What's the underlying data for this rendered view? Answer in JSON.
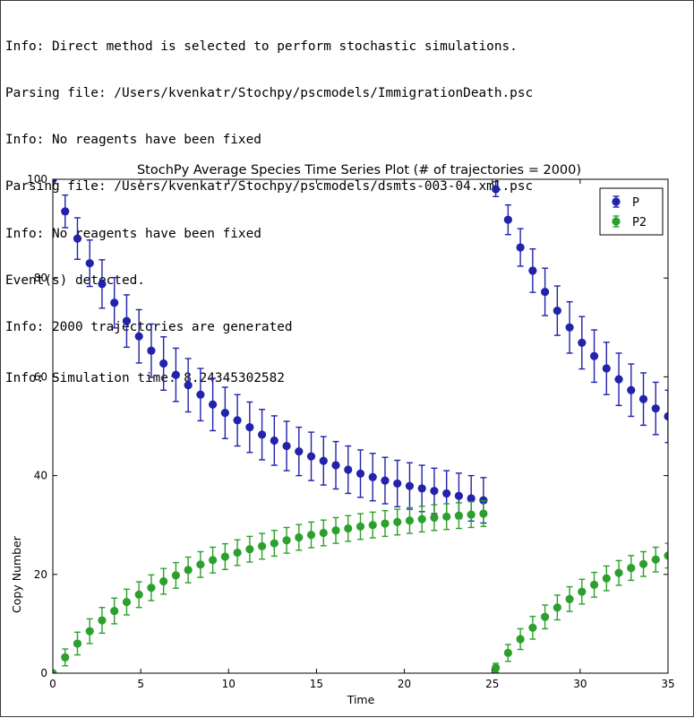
{
  "console": {
    "lines": [
      "Info: Direct method is selected to perform stochastic simulations.",
      "Parsing file: /Users/kvenkatr/Stochpy/pscmodels/ImmigrationDeath.psc",
      "Info: No reagents have been fixed",
      "Parsing file: /Users/kvenkatr/Stochpy/pscmodels/dsmts-003-04.xml.psc",
      "Info: No reagents have been fixed",
      "Event(s) detected.",
      "Info: 2000 trajectories are generated",
      "Info: Simulation time: 8.24345302582"
    ]
  },
  "colors": {
    "P": "#2222aa",
    "P2": "#2ca02c"
  },
  "chart_data": {
    "type": "scatter",
    "title": "StochPy Average Species Time Series Plot (# of trajectories = 2000)",
    "xlabel": "Time",
    "ylabel": "Copy Number",
    "xlim": [
      0,
      35
    ],
    "ylim": [
      0,
      100
    ],
    "xticks": [
      "0",
      "5",
      "10",
      "15",
      "20",
      "25",
      "30",
      "35"
    ],
    "yticks": [
      "0",
      "20",
      "40",
      "60",
      "80",
      "100"
    ],
    "grid": false,
    "legend": "top-right",
    "error_bars": true,
    "series": [
      {
        "name": "P",
        "x": [
          0,
          0.7,
          1.4,
          2.1,
          2.8,
          3.5,
          4.2,
          4.9,
          5.6,
          6.3,
          7.0,
          7.7,
          8.4,
          9.1,
          9.8,
          10.5,
          11.2,
          11.9,
          12.6,
          13.3,
          14.0,
          14.7,
          15.4,
          16.1,
          16.8,
          17.5,
          18.2,
          18.9,
          19.6,
          20.3,
          21.0,
          21.7,
          22.4,
          23.1,
          23.8,
          24.5,
          25.2,
          25.9,
          26.6,
          27.3,
          28.0,
          28.7,
          29.4,
          30.1,
          30.8,
          31.5,
          32.2,
          32.9,
          33.6,
          34.3,
          35.0
        ],
        "y": [
          100,
          93.5,
          88,
          83,
          78.8,
          75,
          71.3,
          68.2,
          65.3,
          62.7,
          60.4,
          58.3,
          56.4,
          54.4,
          52.7,
          51.2,
          49.8,
          48.3,
          47.1,
          46,
          44.9,
          43.9,
          43,
          42.1,
          41.2,
          40.4,
          39.7,
          39,
          38.4,
          37.9,
          37.4,
          36.9,
          36.4,
          35.9,
          35.4,
          35,
          98,
          91.8,
          86.2,
          81.5,
          77.2,
          73.4,
          70,
          66.9,
          64.2,
          61.7,
          59.5,
          57.3,
          55.5,
          53.6,
          52
        ],
        "err": [
          0,
          3.3,
          4.2,
          4.7,
          4.9,
          5.1,
          5.3,
          5.4,
          5.4,
          5.4,
          5.4,
          5.4,
          5.3,
          5.3,
          5.2,
          5.2,
          5.1,
          5.1,
          5.0,
          5.0,
          4.9,
          4.9,
          4.9,
          4.8,
          4.8,
          4.8,
          4.8,
          4.7,
          4.7,
          4.7,
          4.7,
          4.6,
          4.6,
          4.6,
          4.6,
          4.6,
          1.5,
          3.0,
          3.8,
          4.4,
          4.8,
          5.0,
          5.2,
          5.3,
          5.3,
          5.3,
          5.3,
          5.3,
          5.3,
          5.3,
          5.3
        ]
      },
      {
        "name": "P2",
        "x": [
          0,
          0.7,
          1.4,
          2.1,
          2.8,
          3.5,
          4.2,
          4.9,
          5.6,
          6.3,
          7.0,
          7.7,
          8.4,
          9.1,
          9.8,
          10.5,
          11.2,
          11.9,
          12.6,
          13.3,
          14.0,
          14.7,
          15.4,
          16.1,
          16.8,
          17.5,
          18.2,
          18.9,
          19.6,
          20.3,
          21.0,
          21.7,
          22.4,
          23.1,
          23.8,
          24.5,
          25.2,
          25.9,
          26.6,
          27.3,
          28.0,
          28.7,
          29.4,
          30.1,
          30.8,
          31.5,
          32.2,
          32.9,
          33.6,
          34.3,
          35.0
        ],
        "y": [
          0,
          3.2,
          6,
          8.5,
          10.7,
          12.6,
          14.4,
          15.9,
          17.3,
          18.6,
          19.8,
          20.9,
          22,
          22.9,
          23.6,
          24.4,
          25.1,
          25.7,
          26.3,
          26.9,
          27.5,
          28,
          28.4,
          28.9,
          29.3,
          29.7,
          30,
          30.3,
          30.6,
          30.9,
          31.2,
          31.5,
          31.7,
          31.9,
          32.1,
          32.3,
          1.1,
          4.1,
          6.9,
          9.2,
          11.4,
          13.3,
          15,
          16.5,
          17.9,
          19.2,
          20.3,
          21.3,
          22.1,
          23,
          23.8
        ],
        "err": [
          0,
          1.7,
          2.3,
          2.5,
          2.6,
          2.6,
          2.6,
          2.6,
          2.6,
          2.6,
          2.6,
          2.6,
          2.6,
          2.6,
          2.6,
          2.6,
          2.6,
          2.6,
          2.6,
          2.6,
          2.6,
          2.6,
          2.6,
          2.6,
          2.6,
          2.6,
          2.6,
          2.6,
          2.6,
          2.6,
          2.6,
          2.6,
          2.6,
          2.6,
          2.6,
          2.6,
          0.9,
          1.7,
          2.1,
          2.3,
          2.4,
          2.5,
          2.5,
          2.5,
          2.5,
          2.5,
          2.5,
          2.5,
          2.5,
          2.5,
          2.5
        ]
      }
    ]
  }
}
